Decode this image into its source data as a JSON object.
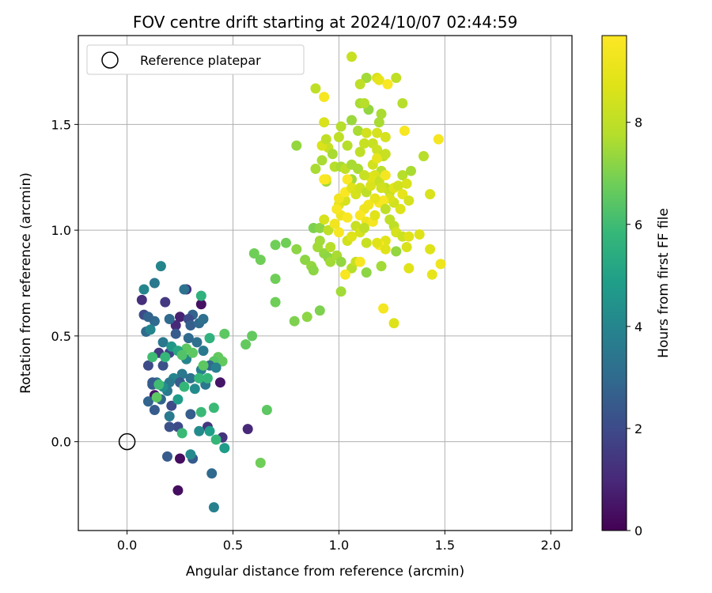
{
  "chart_data": {
    "type": "scatter",
    "title": "FOV centre drift starting at 2024/10/07 02:44:59",
    "xlabel": "Angular distance from reference (arcmin)",
    "ylabel": "Rotation from reference (arcmin)",
    "xlim": [
      -0.23,
      2.1
    ],
    "ylim": [
      -0.42,
      1.92
    ],
    "xticks": [
      0.0,
      0.5,
      1.0,
      1.5,
      2.0
    ],
    "xtick_labels": [
      "0.0",
      "0.5",
      "1.0",
      "1.5",
      "2.0"
    ],
    "yticks": [
      0.0,
      0.5,
      1.0,
      1.5
    ],
    "ytick_labels": [
      "0.0",
      "0.5",
      "1.0",
      "1.5"
    ],
    "grid": true,
    "legend": {
      "placement": "top-left",
      "entries": [
        "Reference platepar"
      ]
    },
    "reference_point": {
      "x": 0.0,
      "y": 0.0
    },
    "colorbar": {
      "label": "Hours from first FF file",
      "min": 0,
      "max": 9.7,
      "ticks": [
        0,
        2,
        4,
        6,
        8
      ],
      "tick_labels": [
        "0",
        "2",
        "4",
        "6",
        "8"
      ],
      "colormap": "viridis"
    },
    "points": [
      [
        0.24,
        -0.23,
        0.3
      ],
      [
        0.25,
        -0.08,
        0.3
      ],
      [
        0.07,
        0.67,
        1.2
      ],
      [
        0.18,
        0.66,
        1.5
      ],
      [
        0.28,
        0.72,
        1.2
      ],
      [
        0.35,
        0.65,
        0.4
      ],
      [
        0.25,
        0.59,
        0.8
      ],
      [
        0.23,
        0.55,
        1.0
      ],
      [
        0.31,
        0.6,
        2.8
      ],
      [
        0.13,
        0.22,
        0.5
      ],
      [
        0.44,
        0.28,
        0.5
      ],
      [
        0.57,
        0.06,
        1.0
      ],
      [
        0.45,
        0.02,
        1.3
      ],
      [
        0.38,
        0.07,
        1.4
      ],
      [
        0.24,
        0.07,
        2.0
      ],
      [
        0.2,
        0.07,
        2.2
      ],
      [
        0.19,
        -0.07,
        2.5
      ],
      [
        0.31,
        -0.08,
        2.5
      ],
      [
        0.3,
        0.13,
        2.6
      ],
      [
        0.4,
        -0.15,
        3.0
      ],
      [
        0.41,
        -0.31,
        3.8
      ],
      [
        0.46,
        -0.03,
        4.8
      ],
      [
        0.3,
        -0.06,
        4.2
      ],
      [
        0.26,
        0.04,
        5.9
      ],
      [
        0.42,
        0.01,
        5.8
      ],
      [
        0.34,
        0.05,
        4.2
      ],
      [
        0.35,
        0.14,
        5.9
      ],
      [
        0.41,
        0.16,
        5.9
      ],
      [
        0.39,
        0.05,
        4.9
      ],
      [
        0.1,
        0.19,
        2.8
      ],
      [
        0.12,
        0.27,
        2.5
      ],
      [
        0.1,
        0.36,
        2.0
      ],
      [
        0.17,
        0.36,
        2.2
      ],
      [
        0.15,
        0.42,
        1.5
      ],
      [
        0.2,
        0.42,
        1.8
      ],
      [
        0.13,
        0.57,
        3.0
      ],
      [
        0.08,
        0.6,
        2.0
      ],
      [
        0.1,
        0.59,
        2.8
      ],
      [
        0.09,
        0.52,
        3.0
      ],
      [
        0.11,
        0.53,
        4.0
      ],
      [
        0.16,
        0.83,
        4.0
      ],
      [
        0.13,
        0.75,
        3.5
      ],
      [
        0.08,
        0.72,
        4.0
      ],
      [
        0.27,
        0.72,
        3.3
      ],
      [
        0.35,
        0.69,
        5.6
      ],
      [
        0.2,
        0.58,
        3.0
      ],
      [
        0.23,
        0.51,
        2.5
      ],
      [
        0.29,
        0.58,
        2.0
      ],
      [
        0.3,
        0.55,
        2.6
      ],
      [
        0.34,
        0.56,
        3.0
      ],
      [
        0.36,
        0.58,
        3.2
      ],
      [
        0.36,
        0.43,
        3.6
      ],
      [
        0.29,
        0.49,
        3.0
      ],
      [
        0.33,
        0.47,
        3.2
      ],
      [
        0.28,
        0.39,
        4.0
      ],
      [
        0.28,
        0.44,
        6.5
      ],
      [
        0.31,
        0.42,
        6.5
      ],
      [
        0.26,
        0.32,
        3.5
      ],
      [
        0.3,
        0.3,
        3.3
      ],
      [
        0.35,
        0.34,
        3.8
      ],
      [
        0.37,
        0.27,
        3.5
      ],
      [
        0.32,
        0.25,
        4.2
      ],
      [
        0.22,
        0.3,
        4.0
      ],
      [
        0.2,
        0.28,
        3.5
      ],
      [
        0.25,
        0.28,
        2.5
      ],
      [
        0.19,
        0.24,
        3.6
      ],
      [
        0.17,
        0.26,
        4.3
      ],
      [
        0.14,
        0.28,
        3.2
      ],
      [
        0.12,
        0.28,
        2.5
      ],
      [
        0.16,
        0.2,
        2.8
      ],
      [
        0.13,
        0.15,
        2.5
      ],
      [
        0.2,
        0.12,
        3.6
      ],
      [
        0.21,
        0.17,
        2.0
      ],
      [
        0.24,
        0.2,
        4.8
      ],
      [
        0.17,
        0.47,
        3.5
      ],
      [
        0.21,
        0.45,
        4.6
      ],
      [
        0.24,
        0.43,
        5.2
      ],
      [
        0.26,
        0.41,
        6.3
      ],
      [
        0.18,
        0.4,
        5.8
      ],
      [
        0.12,
        0.4,
        6.0
      ],
      [
        0.27,
        0.26,
        5.8
      ],
      [
        0.15,
        0.27,
        6.0
      ],
      [
        0.14,
        0.21,
        6.5
      ],
      [
        0.39,
        0.49,
        5.6
      ],
      [
        0.43,
        0.4,
        6.6
      ],
      [
        0.45,
        0.38,
        6.6
      ],
      [
        0.41,
        0.38,
        6.4
      ],
      [
        0.39,
        0.36,
        3.0
      ],
      [
        0.42,
        0.35,
        3.8
      ],
      [
        0.46,
        0.51,
        6.5
      ],
      [
        0.36,
        0.36,
        6.5
      ],
      [
        0.38,
        0.3,
        5.8
      ],
      [
        0.34,
        0.3,
        5.8
      ],
      [
        0.56,
        0.46,
        6.6
      ],
      [
        0.59,
        0.5,
        6.6
      ],
      [
        0.63,
        -0.1,
        6.8
      ],
      [
        0.66,
        0.15,
        6.5
      ],
      [
        0.6,
        0.89,
        6.8
      ],
      [
        0.63,
        0.86,
        6.8
      ],
      [
        0.7,
        0.93,
        6.8
      ],
      [
        0.75,
        0.94,
        6.8
      ],
      [
        0.7,
        0.77,
        6.8
      ],
      [
        0.7,
        0.66,
        6.8
      ],
      [
        0.79,
        0.57,
        7.0
      ],
      [
        0.85,
        0.59,
        7.2
      ],
      [
        0.91,
        0.62,
        7.0
      ],
      [
        0.8,
        0.91,
        7.2
      ],
      [
        0.84,
        0.86,
        7.2
      ],
      [
        0.87,
        0.83,
        7.3
      ],
      [
        0.88,
        0.81,
        7.2
      ],
      [
        0.88,
        1.01,
        7.0
      ],
      [
        0.91,
        1.01,
        7.2
      ],
      [
        0.91,
        0.95,
        7.5
      ],
      [
        0.9,
        0.92,
        7.5
      ],
      [
        0.93,
        0.89,
        7.3
      ],
      [
        0.95,
        0.87,
        7.2
      ],
      [
        0.96,
        0.85,
        7.5
      ],
      [
        0.99,
        0.88,
        7.6
      ],
      [
        1.01,
        0.85,
        7.3
      ],
      [
        1.01,
        0.71,
        7.5
      ],
      [
        0.96,
        0.92,
        7.8
      ],
      [
        0.95,
        1.0,
        8.0
      ],
      [
        0.8,
        1.4,
        7.3
      ],
      [
        0.89,
        1.29,
        7.6
      ],
      [
        0.92,
        1.33,
        7.6
      ],
      [
        0.94,
        1.23,
        7.4
      ],
      [
        0.95,
        1.39,
        8.2
      ],
      [
        0.92,
        1.4,
        8.6
      ],
      [
        0.94,
        1.43,
        8.0
      ],
      [
        0.97,
        1.36,
        7.6
      ],
      [
        0.98,
        1.3,
        7.8
      ],
      [
        1.0,
        1.44,
        8.0
      ],
      [
        1.01,
        1.3,
        7.6
      ],
      [
        1.01,
        1.49,
        7.8
      ],
      [
        1.04,
        1.4,
        7.8
      ],
      [
        1.03,
        1.29,
        8.0
      ],
      [
        1.06,
        1.31,
        7.6
      ],
      [
        1.06,
        1.52,
        7.4
      ],
      [
        1.09,
        1.47,
        7.6
      ],
      [
        1.09,
        1.29,
        7.6
      ],
      [
        1.06,
        1.24,
        7.5
      ],
      [
        1.1,
        1.37,
        8.0
      ],
      [
        1.12,
        1.41,
        8.2
      ],
      [
        1.13,
        1.46,
        8.4
      ],
      [
        1.16,
        1.41,
        8.2
      ],
      [
        1.18,
        1.38,
        8.3
      ],
      [
        1.21,
        1.35,
        8.0
      ],
      [
        1.2,
        1.28,
        7.8
      ],
      [
        1.17,
        1.26,
        8.6
      ],
      [
        1.19,
        1.23,
        8.2
      ],
      [
        1.22,
        1.2,
        8.0
      ],
      [
        1.24,
        1.18,
        8.2
      ],
      [
        1.26,
        1.2,
        8.8
      ],
      [
        1.28,
        1.21,
        8.4
      ],
      [
        1.3,
        1.26,
        7.8
      ],
      [
        1.34,
        1.28,
        7.6
      ],
      [
        1.32,
        1.22,
        8.6
      ],
      [
        1.3,
        1.17,
        9.0
      ],
      [
        1.33,
        1.14,
        8.5
      ],
      [
        1.29,
        1.1,
        8.7
      ],
      [
        1.26,
        1.13,
        8.4
      ],
      [
        1.24,
        1.15,
        8.6
      ],
      [
        1.21,
        1.14,
        9.5
      ],
      [
        1.19,
        1.13,
        9.5
      ],
      [
        1.17,
        1.15,
        9.0
      ],
      [
        1.14,
        1.12,
        9.3
      ],
      [
        1.12,
        1.1,
        9.2
      ],
      [
        1.1,
        1.07,
        9.6
      ],
      [
        1.13,
        1.04,
        9.2
      ],
      [
        1.16,
        1.04,
        9.4
      ],
      [
        1.17,
        1.07,
        8.8
      ],
      [
        1.22,
        1.1,
        8.0
      ],
      [
        1.24,
        1.05,
        8.0
      ],
      [
        1.26,
        1.02,
        8.0
      ],
      [
        1.27,
        0.99,
        8.5
      ],
      [
        1.3,
        0.97,
        8.3
      ],
      [
        1.33,
        0.97,
        8.8
      ],
      [
        1.38,
        0.98,
        8.7
      ],
      [
        1.32,
        0.92,
        8.6
      ],
      [
        1.27,
        0.9,
        7.3
      ],
      [
        1.22,
        0.95,
        8.8
      ],
      [
        1.19,
        0.93,
        9.6
      ],
      [
        1.22,
        0.91,
        8.8
      ],
      [
        1.33,
        0.82,
        8.8
      ],
      [
        1.43,
        0.91,
        8.7
      ],
      [
        1.44,
        0.79,
        9.0
      ],
      [
        1.48,
        0.84,
        9.2
      ],
      [
        1.2,
        0.83,
        7.5
      ],
      [
        1.13,
        0.8,
        7.2
      ],
      [
        1.06,
        0.82,
        7.8
      ],
      [
        1.08,
        0.85,
        8.2
      ],
      [
        1.1,
        0.85,
        9.5
      ],
      [
        1.03,
        0.79,
        9.5
      ],
      [
        1.04,
        0.95,
        8.4
      ],
      [
        1.06,
        0.97,
        8.8
      ],
      [
        1.0,
        0.99,
        9.5
      ],
      [
        0.98,
        1.03,
        9.3
      ],
      [
        1.01,
        1.07,
        9.2
      ],
      [
        1.0,
        1.12,
        8.8
      ],
      [
        1.03,
        1.14,
        8.5
      ],
      [
        1.04,
        1.06,
        9.6
      ],
      [
        1.08,
        1.02,
        8.2
      ],
      [
        1.1,
        0.99,
        8.5
      ],
      [
        1.12,
        1.01,
        8.0
      ],
      [
        1.13,
        0.94,
        8.2
      ],
      [
        1.18,
        0.94,
        8.8
      ],
      [
        0.99,
        1.1,
        9.5
      ],
      [
        1.0,
        1.15,
        9.3
      ],
      [
        1.03,
        1.18,
        9.6
      ],
      [
        1.04,
        1.24,
        9.6
      ],
      [
        1.06,
        1.2,
        8.8
      ],
      [
        1.08,
        1.17,
        8.5
      ],
      [
        1.1,
        1.2,
        8.4
      ],
      [
        1.13,
        1.18,
        8.0
      ],
      [
        1.15,
        1.21,
        8.6
      ],
      [
        1.15,
        1.25,
        8.8
      ],
      [
        1.12,
        1.26,
        8.2
      ],
      [
        1.2,
        1.2,
        8.4
      ],
      [
        1.22,
        1.26,
        9.4
      ],
      [
        1.16,
        1.31,
        8.4
      ],
      [
        1.18,
        1.34,
        9.0
      ],
      [
        1.18,
        1.46,
        8.5
      ],
      [
        1.19,
        1.51,
        7.6
      ],
      [
        1.2,
        1.55,
        7.6
      ],
      [
        1.14,
        1.57,
        7.3
      ],
      [
        1.1,
        1.6,
        7.6
      ],
      [
        1.12,
        1.6,
        7.8
      ],
      [
        1.13,
        1.72,
        7.5
      ],
      [
        1.18,
        1.72,
        8.6
      ],
      [
        1.19,
        1.71,
        9.0
      ],
      [
        1.23,
        1.69,
        9.6
      ],
      [
        1.27,
        1.72,
        8.0
      ],
      [
        1.3,
        1.6,
        7.8
      ],
      [
        1.1,
        1.69,
        8.0
      ],
      [
        1.06,
        1.82,
        8.2
      ],
      [
        0.89,
        1.67,
        8.0
      ],
      [
        0.93,
        1.63,
        9.5
      ],
      [
        0.93,
        1.51,
        8.6
      ],
      [
        1.22,
        1.44,
        8.5
      ],
      [
        1.22,
        1.36,
        8.2
      ],
      [
        1.31,
        1.47,
        9.5
      ],
      [
        1.4,
        1.35,
        7.8
      ],
      [
        1.43,
        1.17,
        8.6
      ],
      [
        1.47,
        1.43,
        9.4
      ],
      [
        1.21,
        0.63,
        9.4
      ],
      [
        1.26,
        0.56,
        8.7
      ],
      [
        0.93,
        1.05,
        8.5
      ],
      [
        0.94,
        1.24,
        9.2
      ],
      [
        0.93,
        1.24,
        9.6
      ]
    ]
  }
}
